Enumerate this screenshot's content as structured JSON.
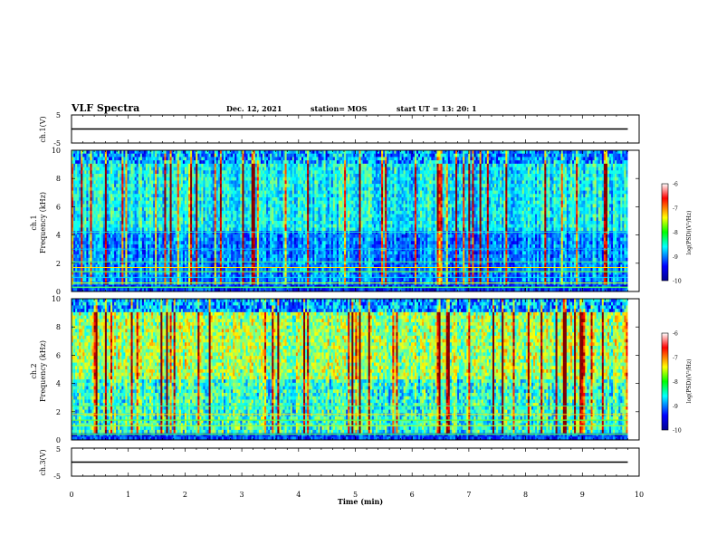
{
  "header": {
    "title": "VLF Spectra",
    "date": "Dec. 12, 2021",
    "station": "station= MOS",
    "start": "start  UT  =   13: 20: 1"
  },
  "chart_data": [
    {
      "type": "line",
      "id": "ch1-voltage",
      "ylabel": "ch.1(V)",
      "ylim": [
        -5,
        5
      ],
      "yticks": [
        "5",
        "-5"
      ],
      "xlim": [
        0,
        10
      ],
      "series": [
        {
          "x": [
            0,
            9.8
          ],
          "values": [
            0,
            0
          ]
        }
      ]
    },
    {
      "type": "heatmap",
      "id": "ch1-spectrogram",
      "ylabel": "ch.1\nFrequency (kHz)",
      "ylim": [
        0,
        10
      ],
      "yticks": [
        "0",
        "2",
        "4",
        "6",
        "8",
        "10"
      ],
      "xlim": [
        0,
        10
      ],
      "data_xmax": 9.8,
      "colorbar": {
        "label": "log(PSD)(V²/Hz)",
        "range": [
          -10,
          -6
        ],
        "ticks": [
          "-6",
          "-7",
          "-8",
          "-9",
          "-10"
        ]
      }
    },
    {
      "type": "heatmap",
      "id": "ch2-spectrogram",
      "ylabel": "ch.2\nFrequency (kHz)",
      "ylim": [
        0,
        10
      ],
      "yticks": [
        "0",
        "2",
        "4",
        "6",
        "8",
        "10"
      ],
      "xlim": [
        0,
        10
      ],
      "data_xmax": 9.8,
      "colorbar": {
        "label": "log(PSD)(V²/Hz)",
        "range": [
          -10,
          -6
        ],
        "ticks": [
          "-6",
          "-7",
          "-8",
          "-9",
          "-10"
        ]
      }
    },
    {
      "type": "line",
      "id": "ch3-voltage",
      "ylabel": "ch.3(V)",
      "ylim": [
        -5,
        5
      ],
      "yticks": [
        "5",
        "-5"
      ],
      "xlim": [
        0,
        10
      ],
      "xlabel": "Time (min)",
      "xticks": [
        "0",
        "1",
        "2",
        "3",
        "4",
        "5",
        "6",
        "7",
        "8",
        "9",
        "10"
      ],
      "series": [
        {
          "x": [
            0,
            9.8
          ],
          "values": [
            0,
            0
          ]
        }
      ]
    }
  ]
}
